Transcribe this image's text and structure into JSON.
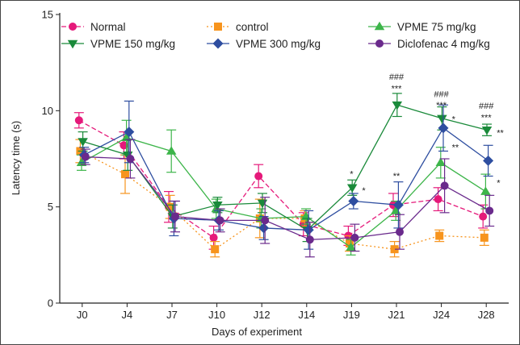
{
  "chart_data": {
    "type": "line",
    "xlabel": "Days of experiment",
    "ylabel": "Latency time (s)",
    "categories": [
      "J0",
      "J4",
      "J7",
      "J10",
      "J12",
      "J14",
      "J19",
      "J21",
      "J24",
      "J28"
    ],
    "ylim": [
      0,
      15
    ],
    "yticks": [
      "0",
      "5",
      "10",
      "15"
    ],
    "grid": false,
    "legend_position": "top",
    "series": [
      {
        "name": "Normal",
        "color": "#e5197a",
        "marker": "circle",
        "dash": "dashed",
        "values": [
          9.5,
          8.2,
          5.0,
          3.4,
          6.6,
          4.1,
          3.5,
          5.1,
          5.4,
          4.5
        ],
        "errors": [
          0.4,
          0.7,
          0.8,
          0.6,
          0.6,
          0.6,
          0.5,
          0.6,
          0.6,
          0.6
        ]
      },
      {
        "name": "control",
        "color": "#f7941d",
        "marker": "square",
        "dash": "dotted",
        "values": [
          7.9,
          6.7,
          5.0,
          2.8,
          4.4,
          4.4,
          3.1,
          2.8,
          3.5,
          3.4
        ],
        "errors": [
          0.6,
          1.0,
          0.6,
          0.4,
          1.0,
          0.4,
          0.4,
          0.4,
          0.3,
          0.4
        ]
      },
      {
        "name": "VPME 75 mg/kg",
        "color": "#3db54a",
        "marker": "triangle-up",
        "dash": "solid",
        "values": [
          7.3,
          8.6,
          7.9,
          4.9,
          4.4,
          4.5,
          2.9,
          4.8,
          7.3,
          5.8
        ],
        "errors": [
          0.4,
          0.9,
          1.1,
          0.5,
          0.5,
          0.4,
          0.4,
          0.5,
          0.8,
          0.9
        ]
      },
      {
        "name": "VPME 150 mg/kg",
        "color": "#1a8a3a",
        "marker": "triangle-down",
        "dash": "solid",
        "values": [
          8.4,
          7.7,
          4.5,
          5.1,
          5.2,
          3.8,
          6.0,
          10.3,
          9.6,
          9.0
        ],
        "errors": [
          0.5,
          0.8,
          0.6,
          0.4,
          0.5,
          0.6,
          0.4,
          0.6,
          0.6,
          0.3
        ]
      },
      {
        "name": "VPME 300 mg/kg",
        "color": "#2e4ea0",
        "marker": "diamond",
        "dash": "solid",
        "values": [
          7.7,
          8.9,
          4.4,
          4.3,
          3.9,
          3.8,
          5.3,
          5.1,
          9.1,
          7.4
        ],
        "errors": [
          0.4,
          1.6,
          0.9,
          0.5,
          0.6,
          1.0,
          0.4,
          1.2,
          1.2,
          0.8
        ]
      },
      {
        "name": "Diclofenac 4 mg/kg",
        "color": "#6a2a8c",
        "marker": "circle",
        "dash": "solid",
        "values": [
          7.6,
          7.5,
          4.5,
          4.3,
          4.3,
          3.3,
          3.4,
          3.7,
          6.1,
          4.8
        ],
        "errors": [
          0.4,
          1.0,
          0.8,
          0.6,
          1.2,
          0.9,
          0.7,
          0.9,
          1.4,
          0.8
        ]
      }
    ],
    "annotations": [
      {
        "x": "J19",
        "y": 6.55,
        "text": "*"
      },
      {
        "x": "J19",
        "y": 5.7,
        "text": "*",
        "offset": "right"
      },
      {
        "x": "J21",
        "y": 11.6,
        "text": "###"
      },
      {
        "x": "J21",
        "y": 11.0,
        "text": "***"
      },
      {
        "x": "J21",
        "y": 6.45,
        "text": "**"
      },
      {
        "x": "J24",
        "y": 10.7,
        "text": "###"
      },
      {
        "x": "J24",
        "y": 10.15,
        "text": "***"
      },
      {
        "x": "J24",
        "y": 9.4,
        "text": "*",
        "offset": "right"
      },
      {
        "x": "J24",
        "y": 7.95,
        "text": "**",
        "offset": "right"
      },
      {
        "x": "J28",
        "y": 10.1,
        "text": "###"
      },
      {
        "x": "J28",
        "y": 9.5,
        "text": "***"
      },
      {
        "x": "J28",
        "y": 8.7,
        "text": "**",
        "offset": "right"
      },
      {
        "x": "J28",
        "y": 6.1,
        "text": "*",
        "offset": "right"
      }
    ]
  }
}
